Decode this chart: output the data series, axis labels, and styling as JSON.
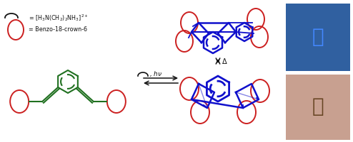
{
  "bg_color": "#ffffff",
  "green_color": "#207020",
  "red_color": "#cc2020",
  "blue_color": "#1010cc",
  "black_color": "#111111",
  "figsize": [
    4.94,
    2.0
  ],
  "dpi": 100,
  "text_benzo": "= Benzo-18-crown-6",
  "text_diamine_left": "= ",
  "photo1_color": "#c8a0a8",
  "photo2_color": "#4070b0"
}
